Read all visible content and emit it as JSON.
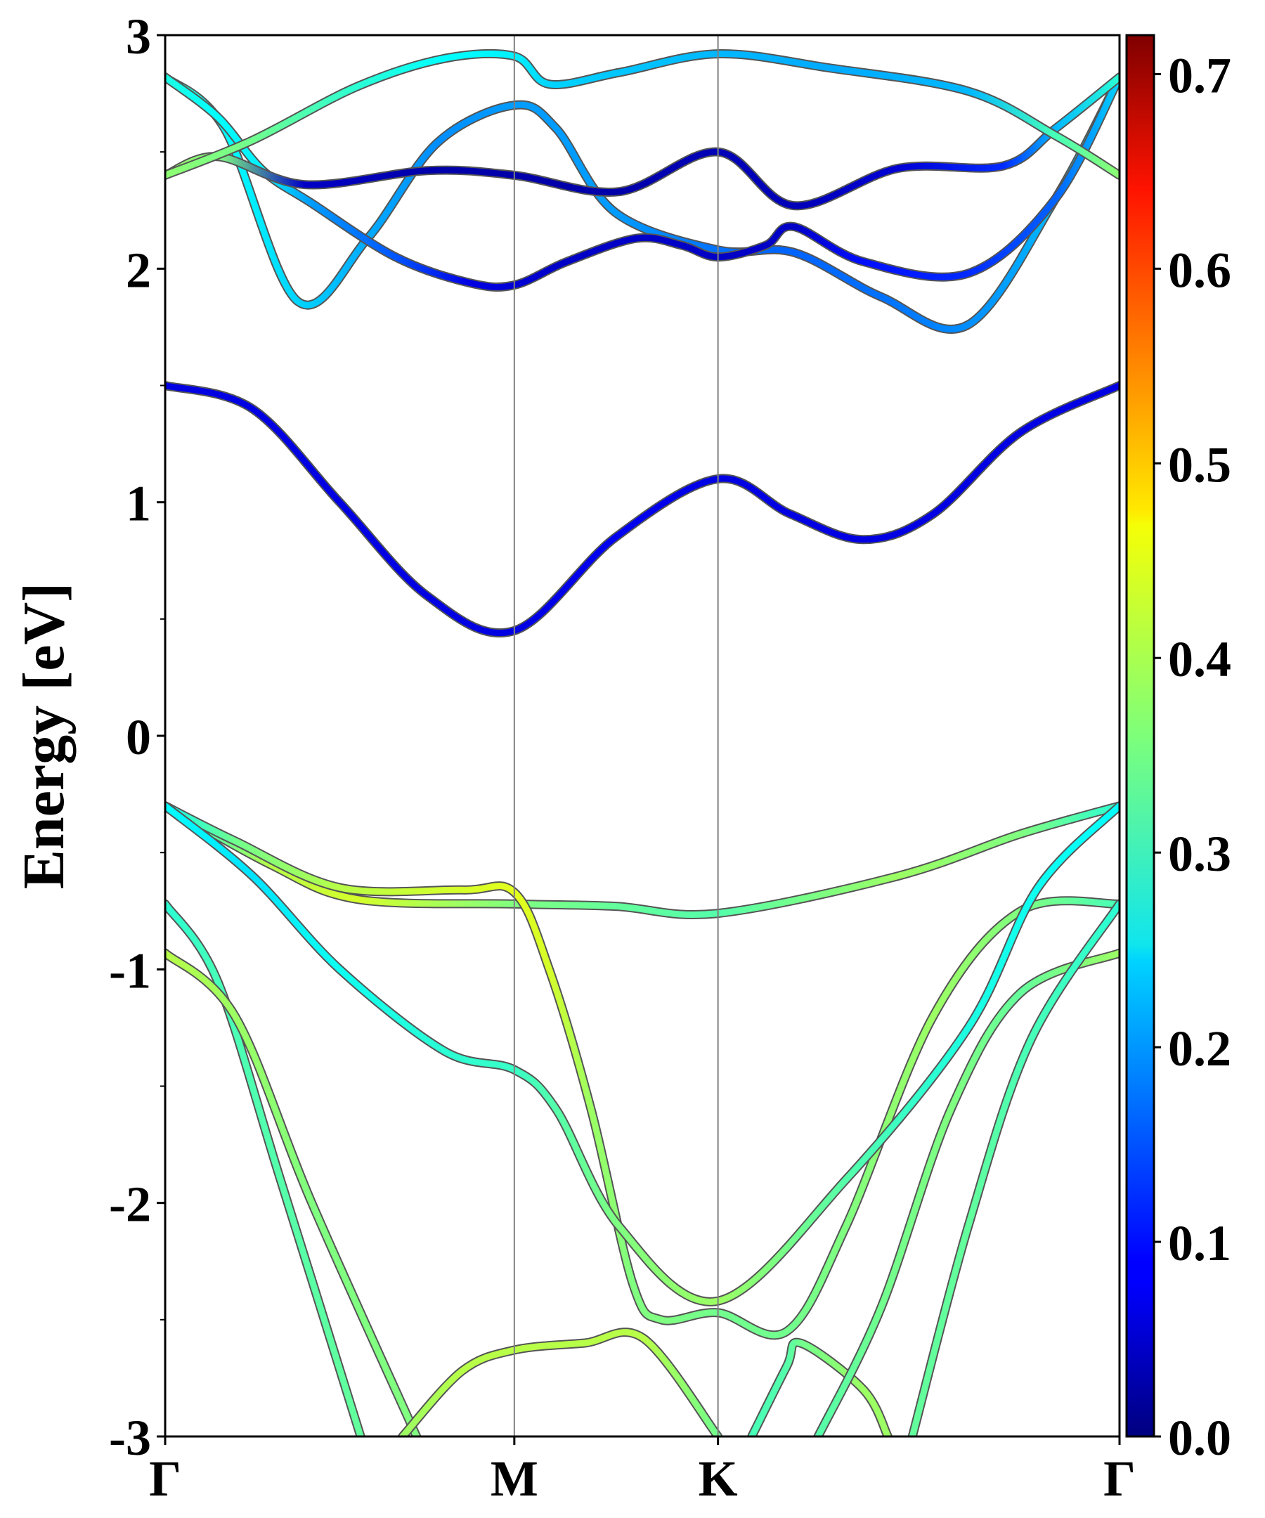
{
  "chart_data": {
    "type": "line",
    "subtype": "band-structure",
    "title": "",
    "ylabel": "Energy [eV]",
    "xlabel": "",
    "ylim": [
      -3,
      3
    ],
    "yticks": [
      "3",
      "2",
      "1",
      "0",
      "-1",
      "-2",
      "-3"
    ],
    "ytick_values": [
      3,
      2,
      1,
      0,
      -1,
      -2,
      -3
    ],
    "kpoints": [
      {
        "label": "Γ",
        "pos": 0.0
      },
      {
        "label": "M",
        "pos": 1.0
      },
      {
        "label": "K",
        "pos": 1.5833
      },
      {
        "label": "Γ",
        "pos": 2.7333
      }
    ],
    "colorbar": {
      "range": [
        0.0,
        0.72
      ],
      "ticks": [
        "0.0",
        "0.1",
        "0.2",
        "0.3",
        "0.4",
        "0.5",
        "0.6",
        "0.7"
      ],
      "tick_values": [
        0.0,
        0.1,
        0.2,
        0.3,
        0.4,
        0.5,
        0.6,
        0.7
      ],
      "colormap": "jet"
    },
    "bands": [
      {
        "name": "conduction-band-1",
        "points": [
          [
            0,
            1.5,
            0.07
          ],
          [
            0.25,
            1.4,
            0.07
          ],
          [
            0.5,
            1.0,
            0.07
          ],
          [
            0.75,
            0.6,
            0.07
          ],
          [
            1.0,
            0.45,
            0.07
          ],
          [
            1.29,
            0.85,
            0.08
          ],
          [
            1.5833,
            1.1,
            0.07
          ],
          [
            1.79,
            0.95,
            0.07
          ],
          [
            2.0,
            0.84,
            0.07
          ],
          [
            2.2,
            0.95,
            0.07
          ],
          [
            2.45,
            1.3,
            0.07
          ],
          [
            2.7333,
            1.5,
            0.07
          ]
        ]
      },
      {
        "name": "conduction-band-2",
        "points": [
          [
            0,
            2.82,
            0.31
          ],
          [
            0.17,
            2.6,
            0.27
          ],
          [
            0.38,
            1.86,
            0.24
          ],
          [
            0.58,
            2.13,
            0.21
          ],
          [
            0.78,
            2.54,
            0.19
          ],
          [
            1.0,
            2.7,
            0.2
          ],
          [
            1.12,
            2.6,
            0.2
          ],
          [
            1.29,
            2.24,
            0.2
          ],
          [
            1.5833,
            2.08,
            0.17
          ],
          [
            1.8,
            2.07,
            0.16
          ],
          [
            2.05,
            1.88,
            0.17
          ],
          [
            2.3,
            1.76,
            0.19
          ],
          [
            2.55,
            2.3,
            0.22
          ],
          [
            2.7333,
            2.82,
            0.3
          ]
        ]
      },
      {
        "name": "conduction-band-3",
        "points": [
          [
            0,
            2.82,
            0.29
          ],
          [
            0.15,
            2.65,
            0.27
          ],
          [
            0.28,
            2.42,
            0.26
          ],
          [
            0.42,
            2.28,
            0.2
          ],
          [
            0.66,
            2.05,
            0.15
          ],
          [
            0.87,
            1.94,
            0.07
          ],
          [
            1.0,
            1.93,
            0.06
          ],
          [
            1.15,
            2.03,
            0.05
          ],
          [
            1.35,
            2.13,
            0.05
          ],
          [
            1.48,
            2.1,
            0.05
          ],
          [
            1.5833,
            2.05,
            0.05
          ],
          [
            1.72,
            2.1,
            0.05
          ],
          [
            1.8,
            2.18,
            0.05
          ],
          [
            2.0,
            2.03,
            0.1
          ],
          [
            2.3,
            1.98,
            0.12
          ],
          [
            2.55,
            2.3,
            0.16
          ],
          [
            2.7333,
            2.82,
            0.24
          ]
        ]
      },
      {
        "name": "conduction-band-4",
        "points": [
          [
            0,
            2.4,
            0.38
          ],
          [
            0.15,
            2.48,
            0.36
          ],
          [
            0.4,
            2.36,
            0.05
          ],
          [
            0.75,
            2.42,
            0.03
          ],
          [
            1.0,
            2.4,
            0.03
          ],
          [
            1.3,
            2.33,
            0.03
          ],
          [
            1.5833,
            2.5,
            0.04
          ],
          [
            1.8,
            2.27,
            0.04
          ],
          [
            2.1,
            2.43,
            0.06
          ],
          [
            2.4,
            2.44,
            0.12
          ],
          [
            2.55,
            2.6,
            0.22
          ],
          [
            2.7333,
            2.82,
            0.3
          ]
        ]
      },
      {
        "name": "conduction-band-5",
        "points": [
          [
            0,
            2.4,
            0.37
          ],
          [
            0.25,
            2.55,
            0.35
          ],
          [
            0.55,
            2.78,
            0.3
          ],
          [
            0.8,
            2.9,
            0.27
          ],
          [
            1.0,
            2.91,
            0.26
          ],
          [
            1.1,
            2.79,
            0.24
          ],
          [
            1.3,
            2.84,
            0.23
          ],
          [
            1.5833,
            2.92,
            0.22
          ],
          [
            1.9,
            2.86,
            0.21
          ],
          [
            2.3,
            2.76,
            0.22
          ],
          [
            2.55,
            2.57,
            0.32
          ],
          [
            2.7333,
            2.4,
            0.37
          ]
        ]
      },
      {
        "name": "valence-band-1",
        "points": [
          [
            0,
            -0.3,
            0.28
          ],
          [
            0.3,
            -0.55,
            0.4
          ],
          [
            0.55,
            -0.7,
            0.42
          ],
          [
            1.0,
            -0.72,
            0.36
          ],
          [
            1.29,
            -0.73,
            0.34
          ],
          [
            1.5833,
            -0.76,
            0.33
          ],
          [
            2.1,
            -0.6,
            0.38
          ],
          [
            2.45,
            -0.42,
            0.36
          ],
          [
            2.7333,
            -0.3,
            0.3
          ]
        ]
      },
      {
        "name": "valence-band-2",
        "points": [
          [
            0,
            -0.3,
            0.28
          ],
          [
            0.2,
            -0.45,
            0.35
          ],
          [
            0.5,
            -0.65,
            0.4
          ],
          [
            0.85,
            -0.66,
            0.42
          ],
          [
            1.0,
            -0.67,
            0.43
          ],
          [
            1.1,
            -1.0,
            0.42
          ],
          [
            1.22,
            -1.6,
            0.38
          ],
          [
            1.34,
            -2.35,
            0.36
          ],
          [
            1.42,
            -2.5,
            0.36
          ],
          [
            1.5833,
            -2.47,
            0.35
          ],
          [
            1.78,
            -2.55,
            0.35
          ],
          [
            1.95,
            -2.1,
            0.36
          ],
          [
            2.2,
            -1.2,
            0.38
          ],
          [
            2.45,
            -0.75,
            0.36
          ],
          [
            2.7333,
            -0.72,
            0.32
          ]
        ]
      },
      {
        "name": "valence-band-3",
        "points": [
          [
            0,
            -0.3,
            0.27
          ],
          [
            0.25,
            -0.6,
            0.25
          ],
          [
            0.5,
            -1.0,
            0.28
          ],
          [
            0.8,
            -1.35,
            0.3
          ],
          [
            1.0,
            -1.43,
            0.31
          ],
          [
            1.12,
            -1.6,
            0.33
          ],
          [
            1.3,
            -2.1,
            0.36
          ],
          [
            1.5833,
            -2.42,
            0.38
          ],
          [
            1.95,
            -1.9,
            0.33
          ],
          [
            2.3,
            -1.25,
            0.29
          ],
          [
            2.5,
            -0.65,
            0.28
          ],
          [
            2.7333,
            -0.3,
            0.27
          ]
        ]
      },
      {
        "name": "valence-band-4",
        "points": [
          [
            0,
            -0.72,
            0.3
          ],
          [
            0.15,
            -1.05,
            0.32
          ],
          [
            0.33,
            -1.9,
            0.33
          ],
          [
            0.56,
            -3.0,
            0.34
          ]
        ]
      },
      {
        "name": "valence-band-5",
        "points": [
          [
            0,
            -0.93,
            0.4
          ],
          [
            0.2,
            -1.2,
            0.38
          ],
          [
            0.42,
            -2.0,
            0.36
          ],
          [
            0.72,
            -3.0,
            0.36
          ]
        ]
      },
      {
        "name": "valence-band-6",
        "points": [
          [
            0.68,
            -3.0,
            0.38
          ],
          [
            0.85,
            -2.72,
            0.4
          ],
          [
            1.0,
            -2.63,
            0.4
          ],
          [
            1.2,
            -2.6,
            0.4
          ],
          [
            1.37,
            -2.58,
            0.4
          ],
          [
            1.5833,
            -3.0,
            0.35
          ]
        ]
      },
      {
        "name": "valence-band-7",
        "points": [
          [
            1.68,
            -3.0,
            0.32
          ],
          [
            1.78,
            -2.7,
            0.33
          ],
          [
            1.82,
            -2.6,
            0.35
          ],
          [
            2.0,
            -2.8,
            0.38
          ],
          [
            2.07,
            -3.0,
            0.38
          ]
        ]
      },
      {
        "name": "valence-band-8",
        "points": [
          [
            1.87,
            -3.0,
            0.33
          ],
          [
            2.05,
            -2.45,
            0.35
          ],
          [
            2.25,
            -1.6,
            0.36
          ],
          [
            2.45,
            -1.1,
            0.34
          ],
          [
            2.7333,
            -0.93,
            0.38
          ]
        ]
      },
      {
        "name": "valence-band-9",
        "points": [
          [
            2.14,
            -3.0,
            0.34
          ],
          [
            2.3,
            -2.1,
            0.34
          ],
          [
            2.48,
            -1.3,
            0.32
          ],
          [
            2.7333,
            -0.72,
            0.3
          ]
        ]
      }
    ]
  }
}
